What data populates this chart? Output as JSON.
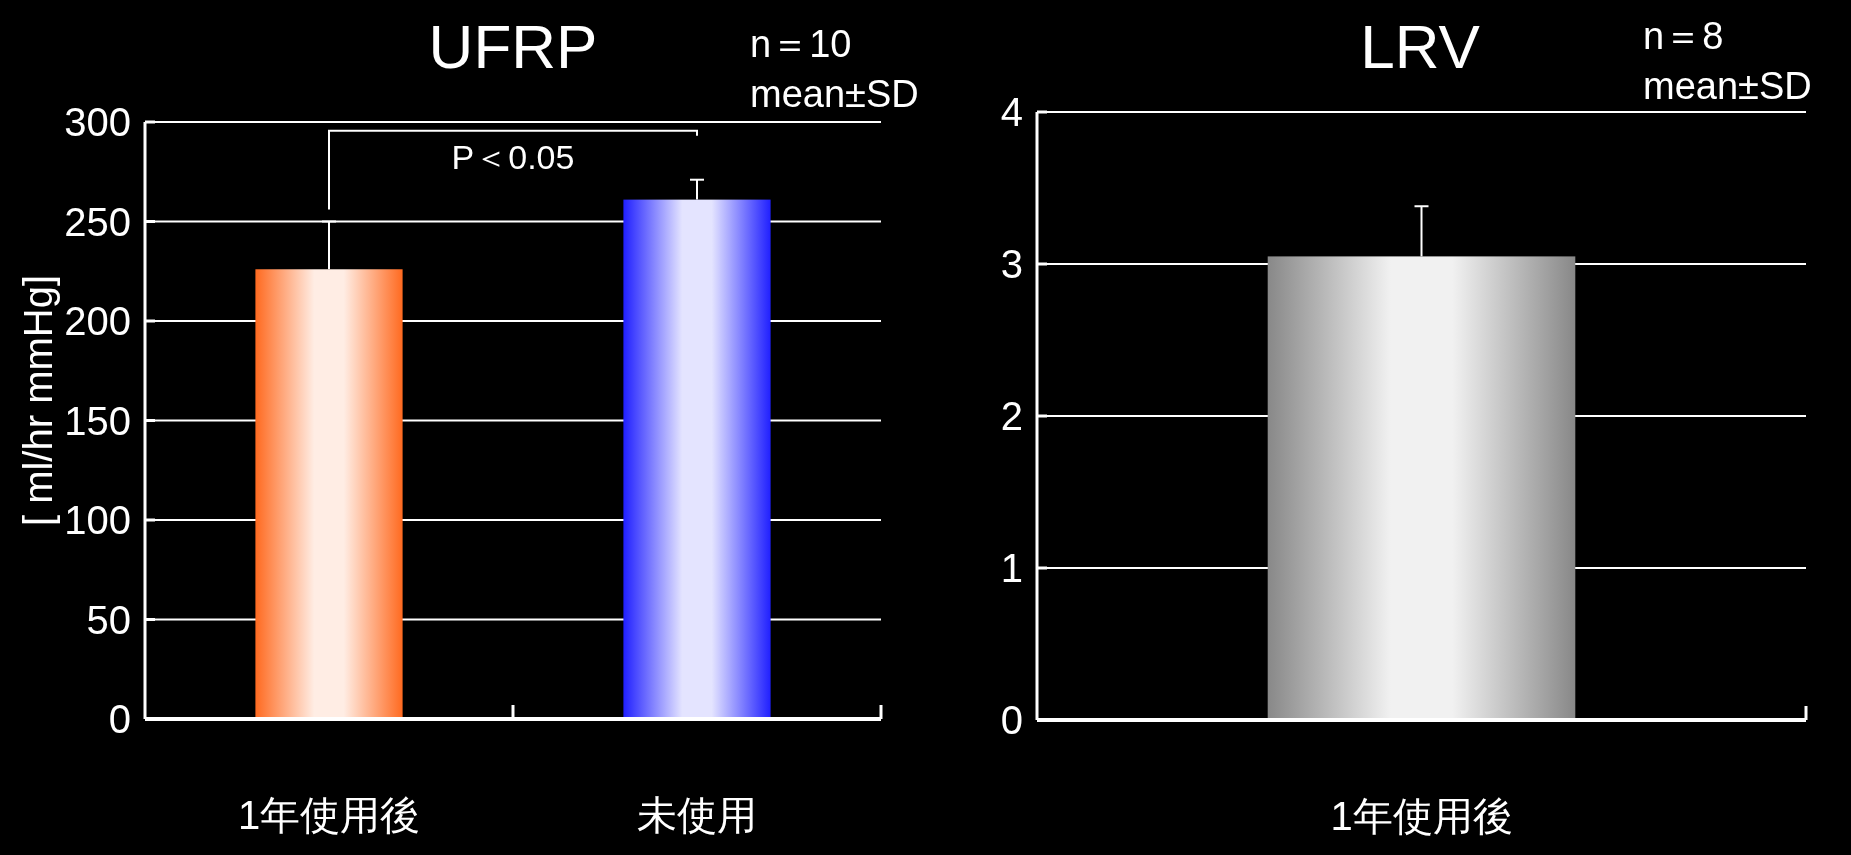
{
  "chart_data": [
    {
      "type": "bar",
      "title": "UFRP",
      "ylabel": "[ ml/hr mmHg]",
      "categories": [
        "1年使用後",
        "未使用"
      ],
      "values": [
        226,
        261
      ],
      "errors": [
        [
          226,
          250
        ],
        [
          261,
          271
        ]
      ],
      "colors": [
        "#ff6a20",
        "#2020ff"
      ],
      "ylim": [
        0,
        300
      ],
      "yticks": [
        0,
        50,
        100,
        150,
        200,
        250,
        300
      ],
      "grid": "y",
      "annotations": [
        "n＝10",
        "mean±SD",
        "P＜0.05"
      ]
    },
    {
      "type": "bar",
      "title": "LRV",
      "categories": [
        "1年使用後"
      ],
      "values": [
        3.05
      ],
      "errors": [
        [
          3.05,
          3.38
        ]
      ],
      "colors": [
        "#888888"
      ],
      "ylim": [
        0,
        4
      ],
      "yticks": [
        0,
        1,
        2,
        3,
        4
      ],
      "grid": "y",
      "annotations": [
        "n＝8",
        "mean±SD"
      ]
    }
  ]
}
